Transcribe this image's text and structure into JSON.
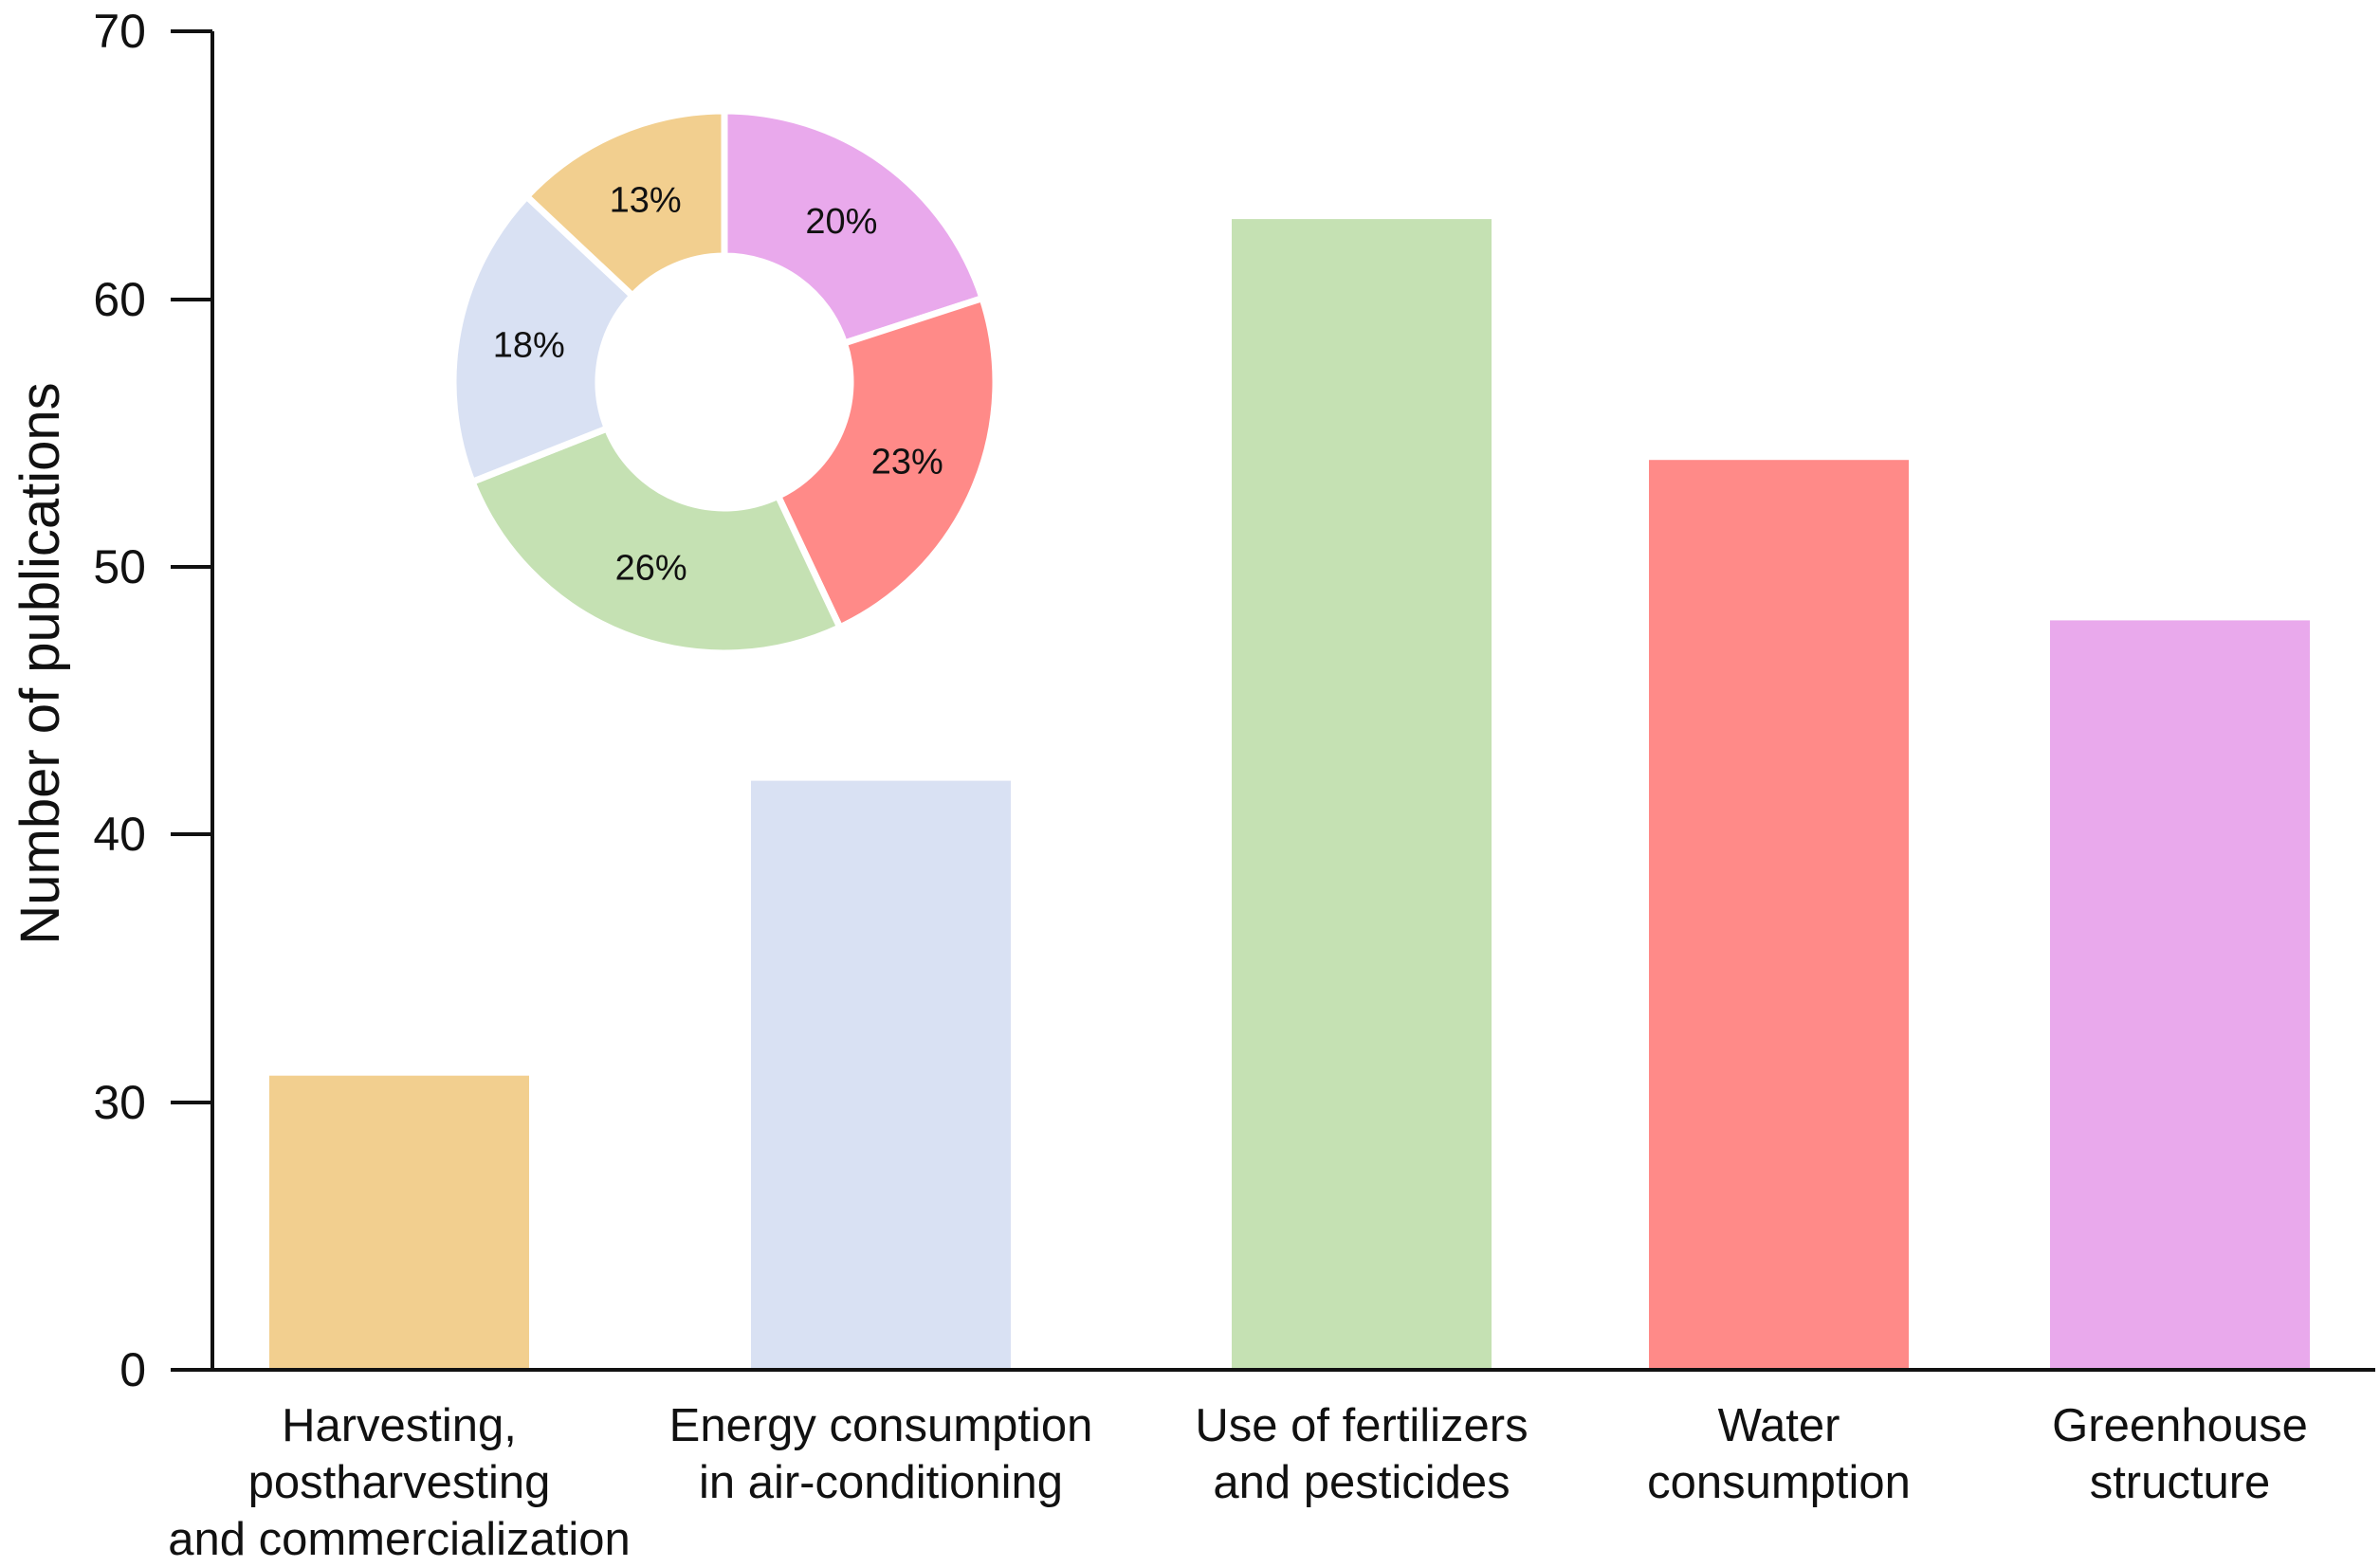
{
  "chart_data": [
    {
      "type": "bar",
      "title": "",
      "xlabel": "",
      "ylabel": "Number of publications",
      "ylim": [
        0,
        70
      ],
      "y_axis_breaks": [
        {
          "tick_value": 0,
          "tick_label": "0"
        },
        {
          "tick_value": 30,
          "tick_label": "30"
        },
        {
          "tick_value": 40,
          "tick_label": "40"
        },
        {
          "tick_value": 50,
          "tick_label": "50"
        },
        {
          "tick_value": 60,
          "tick_label": "60"
        },
        {
          "tick_value": 70,
          "tick_label": "70"
        }
      ],
      "categories": [
        [
          "Harvesting,",
          "postharvesting",
          "and commercialization"
        ],
        [
          "Energy consumption",
          "in air-conditioning"
        ],
        [
          "Use of fertilizers",
          "and pesticides"
        ],
        [
          "Water",
          "consumption"
        ],
        [
          "Greenhouse",
          "structure"
        ]
      ],
      "values": [
        31,
        42,
        63,
        54,
        48
      ],
      "colors": [
        "#f2cf8f",
        "#d9e1f3",
        "#c5e1b3",
        "#ff8a88",
        "#e9a9ec"
      ],
      "grid": false,
      "legend": "none"
    },
    {
      "type": "pie",
      "style": "donut",
      "slices": [
        {
          "label": "20%",
          "value": 20,
          "color": "#e9a9ec",
          "category": "Greenhouse structure"
        },
        {
          "label": "23%",
          "value": 23,
          "color": "#ff8a88",
          "category": "Water consumption"
        },
        {
          "label": "26%",
          "value": 26,
          "color": "#c5e1b3",
          "category": "Use of fertilizers and pesticides"
        },
        {
          "label": "18%",
          "value": 18,
          "color": "#d9e1f3",
          "category": "Energy consumption in air-conditioning"
        },
        {
          "label": "13%",
          "value": 13,
          "color": "#f2cf8f",
          "category": "Harvesting, postharvesting and commercialization"
        }
      ]
    }
  ]
}
